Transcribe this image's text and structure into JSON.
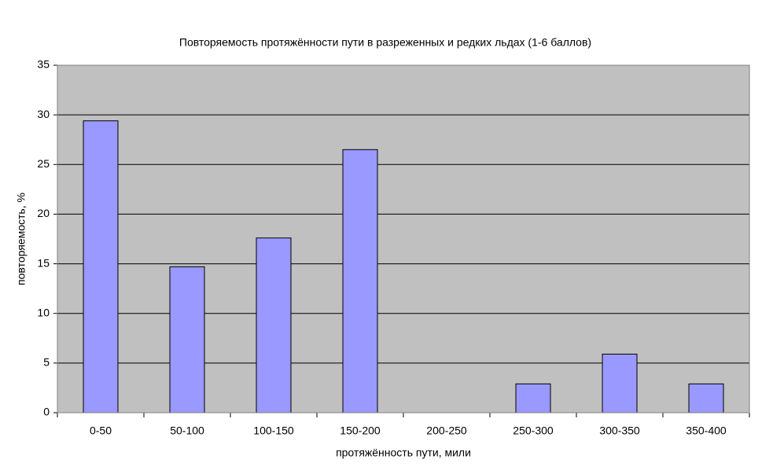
{
  "chart_data": {
    "type": "bar",
    "title": "Повторяемость протяжённости пути в разреженных и редких льдах (1-6 баллов)",
    "x_label": "протяжённость пути, мили",
    "y_label": "повторяемость, %",
    "categories": [
      "0-50",
      "50-100",
      "100-150",
      "150-200",
      "200-250",
      "250-300",
      "300-350",
      "350-400"
    ],
    "values": [
      29.4,
      14.7,
      17.6,
      26.5,
      0,
      2.9,
      5.9,
      2.9
    ],
    "color": "#9999ff",
    "ylim": [
      0,
      35
    ],
    "yticks": [
      0,
      5,
      10,
      15,
      20,
      25,
      30,
      35
    ],
    "grid": true
  }
}
